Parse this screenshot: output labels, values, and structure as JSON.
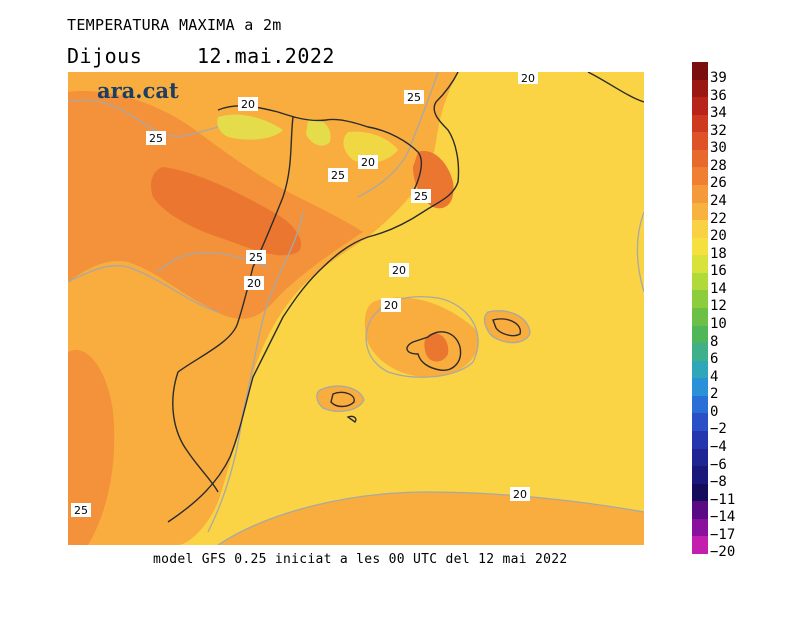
{
  "header": {
    "title": "TEMPERATURA MAXIMA a 2m",
    "day": "Dijous",
    "date": "12.mai.2022"
  },
  "brand": "ara.cat",
  "footer": "model GFS 0.25 iniciat a les 00 UTC del 12 mai 2022",
  "contour_labels": [
    "20",
    "25",
    "25",
    "20",
    "25",
    "25",
    "25",
    "20",
    "20",
    "20",
    "20",
    "25",
    "20"
  ],
  "legend": {
    "values": [
      "39",
      "36",
      "34",
      "32",
      "30",
      "28",
      "26",
      "24",
      "22",
      "20",
      "18",
      "16",
      "14",
      "12",
      "10",
      "8",
      "6",
      "4",
      "2",
      "0",
      "−2",
      "−4",
      "−6",
      "−8",
      "−11",
      "−14",
      "−17",
      "−20"
    ],
    "colors": [
      "#7a0d0d",
      "#9b1812",
      "#b7241a",
      "#cd3a20",
      "#dd5226",
      "#e8692c",
      "#f07f34",
      "#f59a3a",
      "#f8b23f",
      "#fad044",
      "#f6e040",
      "#d9e23a",
      "#b0d93a",
      "#8ccd3c",
      "#6cc046",
      "#4fb65a",
      "#3fb08a",
      "#2fa7b8",
      "#2a90d8",
      "#2a6fd8",
      "#2a4fc7",
      "#2536ae",
      "#1f2694",
      "#1a1878",
      "#150c5c",
      "#5a0a82",
      "#8a119e",
      "#c41eaf"
    ]
  }
}
